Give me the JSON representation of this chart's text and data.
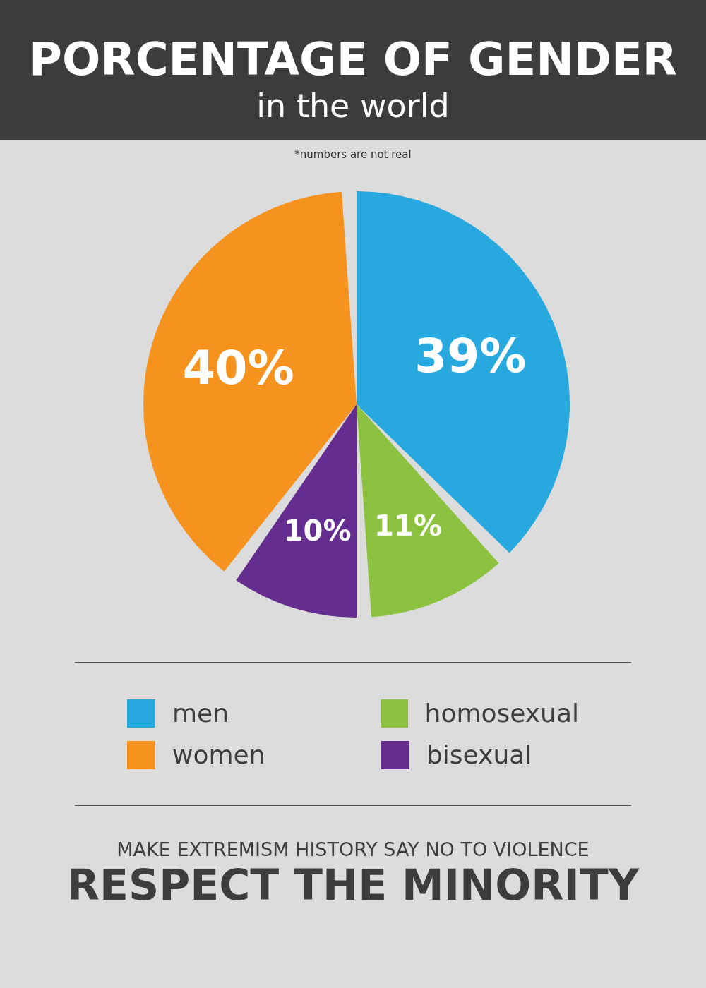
{
  "chart_data": {
    "type": "pie",
    "title": "PORCENTAGE OF GENDER",
    "subtitle": "in the world",
    "categories": [
      "men",
      "homosexual",
      "bisexual",
      "women"
    ],
    "values": [
      39,
      11,
      10,
      40
    ],
    "colors": [
      "#27a8df",
      "#8cc23f",
      "#652d90",
      "#f6921e"
    ],
    "value_labels": [
      "39%",
      "11%",
      "10%",
      "40%"
    ],
    "legend": "bottom",
    "annotations": [
      "*numbers are not real",
      "MAKE EXTREMISM HISTORY SAY NO TO VIOLENCE",
      "RESPECT THE MINORITY"
    ]
  }
}
